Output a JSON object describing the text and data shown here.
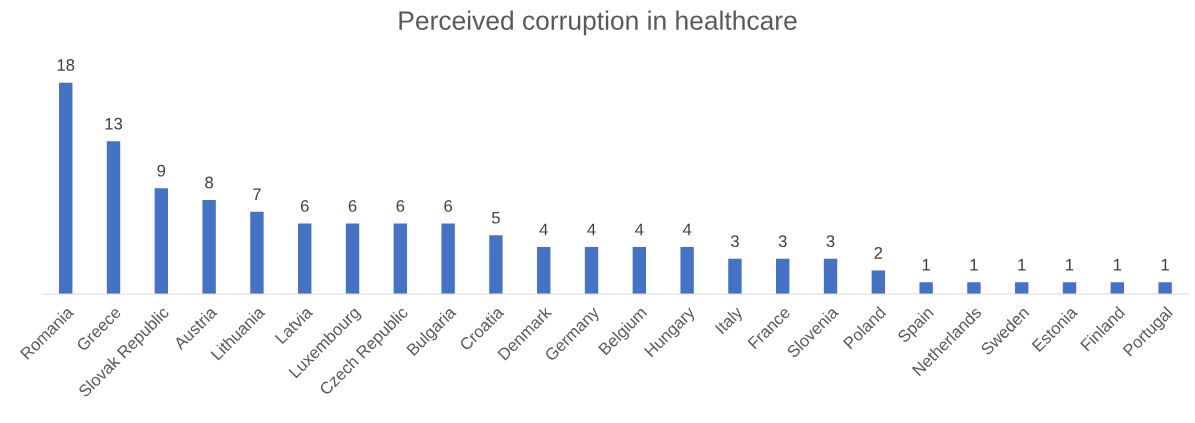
{
  "chart_data": {
    "type": "bar",
    "title": "Perceived corruption in healthcare",
    "categories": [
      "Romania",
      "Greece",
      "Slovak Republic",
      "Austria",
      "Lithuania",
      "Latvia",
      "Luxembourg",
      "Czech Republic",
      "Bulgaria",
      "Croatia",
      "Denmark",
      "Germany",
      "Belgium",
      "Hungary",
      "Italy",
      "France",
      "Slovenia",
      "Poland",
      "Spain",
      "Netherlands",
      "Sweden",
      "Estonia",
      "Finland",
      "Portugal"
    ],
    "values": [
      18,
      13,
      9,
      8,
      7,
      6,
      6,
      6,
      6,
      5,
      4,
      4,
      4,
      4,
      3,
      3,
      3,
      2,
      1,
      1,
      1,
      1,
      1,
      1
    ],
    "color": "#4472c4",
    "data_labels": true,
    "grid": false,
    "legend": false
  }
}
